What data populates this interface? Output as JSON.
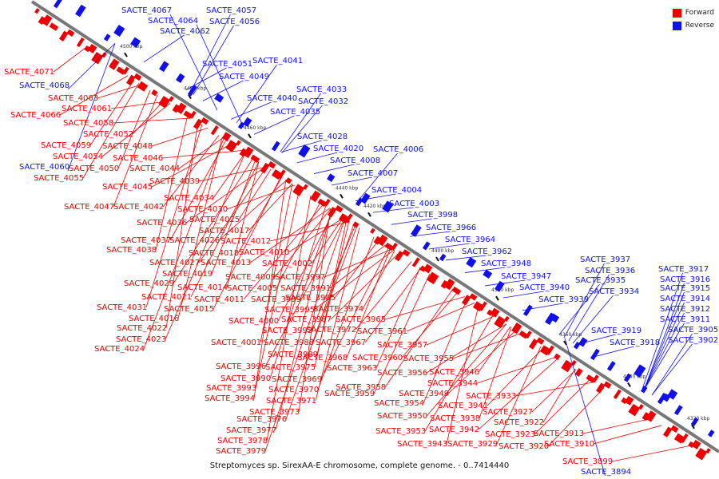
{
  "colors": {
    "forward": "#ee0000",
    "reverse": "#1010ee",
    "axis": "#777777"
  },
  "legend": {
    "forward": "Forward",
    "reverse": "Reverse"
  },
  "caption": "Streptomyces sp. SirexAA-E chromosome, complete genome. - 0..7414440",
  "ticks": [
    "4500 kbp",
    "4480 kbp",
    "4460 kbp",
    "4440 kbp",
    "4420 kbp",
    "4400 kbp",
    "4380 kbp",
    "4360 kbp",
    "4340 kbp",
    "4320 kbp"
  ],
  "reverse_labels": [
    "SACTE_4067",
    "SACTE_4064",
    "SACTE_4062",
    "SACTE_4057",
    "SACTE_4056",
    "SACTE_4068",
    "SACTE_4051",
    "SACTE_4041",
    "SACTE_4049",
    "SACTE_4033",
    "SACTE_4040",
    "SACTE_4032",
    "SACTE_4035",
    "SACTE_4028",
    "SACTE_4020",
    "SACTE_4006",
    "SACTE_4008",
    "SACTE_4007",
    "SACTE_4060",
    "SACTE_4004",
    "SACTE_4003",
    "SACTE_3998",
    "SACTE_3966",
    "SACTE_3964",
    "SACTE_3962",
    "SACTE_3948",
    "SACTE_3947",
    "SACTE_3940",
    "SACTE_3939",
    "SACTE_3937",
    "SACTE_3936",
    "SACTE_3935",
    "SACTE_3934",
    "SACTE_3917",
    "SACTE_3916",
    "SACTE_3915",
    "SACTE_3914",
    "SACTE_3912",
    "SACTE_3911",
    "SACTE_3919",
    "SACTE_3918",
    "SACTE_3905",
    "SACTE_3902",
    "SACTE_3894"
  ],
  "forward_labels": [
    "SACTE_4071",
    "SACTE_4063",
    "SACTE_4061",
    "SACTE_4066",
    "SACTE_4058",
    "SACTE_4052",
    "SACTE_4059",
    "SACTE_4048",
    "SACTE_4054",
    "SACTE_4046",
    "SACTE_4050",
    "SACTE_4044",
    "SACTE_4055",
    "SACTE_4039",
    "SACTE_4045",
    "SACTE_4034",
    "SACTE_4047",
    "SACTE_4042",
    "SACTE_4030",
    "SACTE_4036",
    "SACTE_4025",
    "SACTE_4017",
    "SACTE_4037",
    "SACTE_4026",
    "SACTE_4012",
    "SACTE_4038",
    "SACTE_4018",
    "SACTE_4010",
    "SACTE_4027",
    "SACTE_4013",
    "SACTE_4002",
    "SACTE_4019",
    "SACTE_4009",
    "SACTE_3997",
    "SACTE_4029",
    "SACTE_4014",
    "SACTE_4005",
    "SACTE_3991",
    "SACTE_4021",
    "SACTE_4011",
    "SACTE_3999",
    "SACTE_3985",
    "SACTE_4031",
    "SACTE_4015",
    "SACTE_3995",
    "SACTE_3974",
    "SACTE_4016",
    "SACTE_4000",
    "SACTE_3987",
    "SACTE_3965",
    "SACTE_4022",
    "SACTE_3992",
    "SACTE_3972",
    "SACTE_3961",
    "SACTE_4023",
    "SACTE_4001",
    "SACTE_3988",
    "SACTE_3967",
    "SACTE_3957",
    "SACTE_4024",
    "SACTE_3989",
    "SACTE_3968",
    "SACTE_3960",
    "SACTE_3955",
    "SACTE_3996",
    "SACTE_3975",
    "SACTE_3963",
    "SACTE_3990",
    "SACTE_3969",
    "SACTE_3956",
    "SACTE_3946",
    "SACTE_3993",
    "SACTE_3970",
    "SACTE_3958",
    "SACTE_3944",
    "SACTE_3994",
    "SACTE_3971",
    "SACTE_3959",
    "SACTE_3949",
    "SACTE_3933",
    "SACTE_3973",
    "SACTE_3954",
    "SACTE_3941",
    "SACTE_3976",
    "SACTE_3950",
    "SACTE_3938",
    "SACTE_3927",
    "SACTE_3977",
    "SACTE_3953",
    "SACTE_3942",
    "SACTE_3922",
    "SACTE_3978",
    "SACTE_3923",
    "SACTE_3913",
    "SACTE_3979",
    "SACTE_3943",
    "SACTE_3929",
    "SACTE_3920",
    "SACTE_3910",
    "SACTE_3899"
  ]
}
